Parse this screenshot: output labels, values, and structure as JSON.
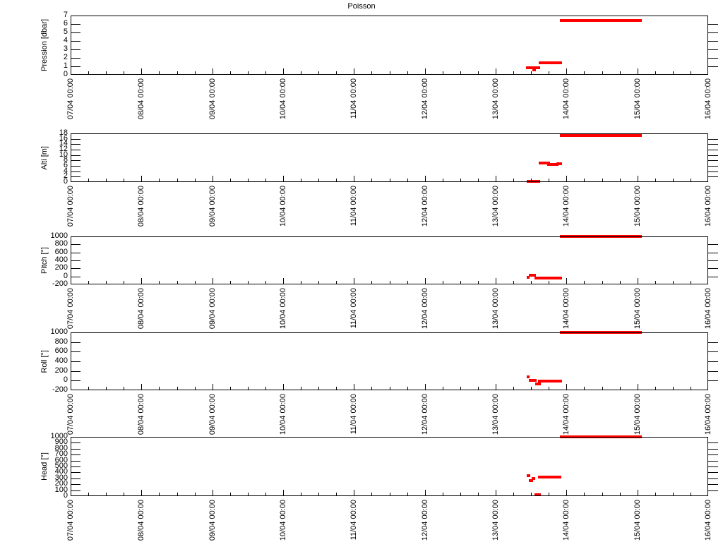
{
  "title": "Poisson",
  "colors": {
    "line": "#ff0000",
    "axis": "#000000",
    "background": "#ffffff"
  },
  "x_axis": {
    "unit": "days since 07/04 00:00",
    "range_days": [
      0,
      9
    ],
    "minor_ticks_per_day": 4,
    "tick_labels": [
      "07/04 00:00",
      "08/04 00:00",
      "09/04 00:00",
      "10/04 00:00",
      "11/04 00:00",
      "12/04 00:00",
      "13/04 00:00",
      "14/04 00:00",
      "15/04 00:00",
      "16/04 00:00"
    ]
  },
  "chart_data": [
    {
      "type": "line",
      "ylabel": "Pression [dbar]",
      "ylim": [
        0,
        7
      ],
      "yticks": [
        0,
        1,
        2,
        3,
        4,
        5,
        6,
        7
      ],
      "grid": false,
      "legend": false,
      "series": [
        {
          "name": "pression",
          "color": "#ff0000",
          "segments_days_value": [
            [
              6.43,
              6.63,
              0.85
            ],
            [
              6.52,
              6.57,
              0.6
            ],
            [
              6.61,
              6.94,
              1.4
            ],
            [
              6.91,
              8.07,
              6.4
            ]
          ]
        }
      ]
    },
    {
      "type": "line",
      "ylabel": "Alti [m]",
      "ylim": [
        0,
        18
      ],
      "yticks": [
        0,
        2,
        4,
        6,
        8,
        10,
        12,
        14,
        16,
        18
      ],
      "grid": false,
      "legend": false,
      "series": [
        {
          "name": "alti",
          "color": "#ff0000",
          "segments_days_value": [
            [
              6.44,
              6.63,
              0.15
            ],
            [
              6.61,
              6.77,
              7.1
            ],
            [
              6.73,
              6.89,
              6.5
            ],
            [
              6.86,
              6.94,
              6.9
            ],
            [
              6.91,
              8.07,
              17.1
            ]
          ]
        }
      ]
    },
    {
      "type": "line",
      "ylabel": "Pitch [°]",
      "ylim": [
        -200,
        1000
      ],
      "yticks": [
        -200,
        0,
        200,
        400,
        600,
        800,
        1000
      ],
      "grid": false,
      "legend": false,
      "series": [
        {
          "name": "pitch",
          "color": "#ff0000",
          "segments_days_value": [
            [
              6.44,
              6.48,
              -30
            ],
            [
              6.47,
              6.57,
              35
            ],
            [
              6.55,
              6.94,
              -45
            ],
            [
              6.91,
              8.07,
              1000
            ]
          ]
        }
      ]
    },
    {
      "type": "line",
      "ylabel": "Roll [°]",
      "ylim": [
        -200,
        1000
      ],
      "yticks": [
        -200,
        0,
        200,
        400,
        600,
        800,
        1000
      ],
      "grid": false,
      "legend": false,
      "series": [
        {
          "name": "roll",
          "color": "#ff0000",
          "segments_days_value": [
            [
              6.44,
              6.48,
              85
            ],
            [
              6.47,
              6.58,
              5
            ],
            [
              6.56,
              6.64,
              -70
            ],
            [
              6.6,
              6.94,
              -5
            ],
            [
              6.91,
              8.07,
              1000
            ]
          ]
        }
      ]
    },
    {
      "type": "line",
      "ylabel": "Head [°]",
      "ylim": [
        0,
        1000
      ],
      "yticks": [
        0,
        100,
        200,
        300,
        400,
        500,
        600,
        700,
        800,
        900,
        1000
      ],
      "grid": false,
      "legend": false,
      "series": [
        {
          "name": "head",
          "color": "#ff0000",
          "segments_days_value": [
            [
              6.44,
              6.49,
              345
            ],
            [
              6.47,
              6.53,
              265
            ],
            [
              6.51,
              6.56,
              300
            ],
            [
              6.55,
              6.64,
              20
            ],
            [
              6.6,
              6.93,
              320
            ],
            [
              6.91,
              8.07,
              1000
            ]
          ]
        }
      ]
    }
  ]
}
